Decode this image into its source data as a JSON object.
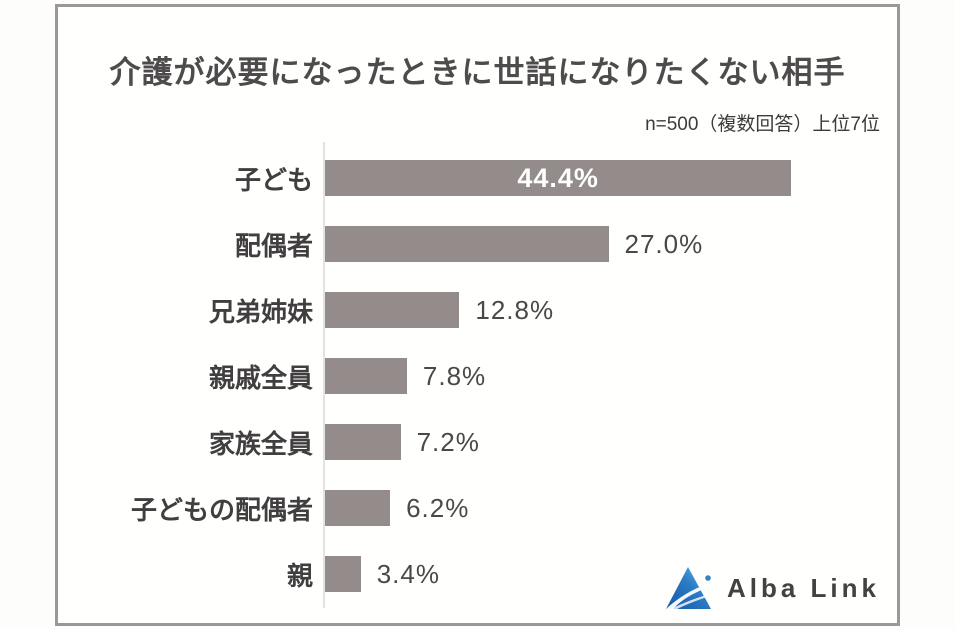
{
  "header": {
    "title": "介護が必要になったときに世話になりたくない相手",
    "note": "n=500（複数回答）上位7位"
  },
  "chart_data": {
    "type": "bar",
    "orientation": "horizontal",
    "title": "介護が必要になったときに世話になりたくない相手",
    "subtitle": "n=500（複数回答）上位7位",
    "categories": [
      "子ども",
      "配偶者",
      "兄弟姉妹",
      "親戚全員",
      "家族全員",
      "子どもの配偶者",
      "親"
    ],
    "values": [
      44.4,
      27.0,
      12.8,
      7.8,
      7.2,
      6.2,
      3.4
    ],
    "value_labels": [
      "44.4%",
      "27.0%",
      "12.8%",
      "7.8%",
      "7.2%",
      "6.2%",
      "3.4%"
    ],
    "value_label_position": [
      "inside",
      "outside",
      "outside",
      "outside",
      "outside",
      "outside",
      "outside"
    ],
    "xlim": [
      0,
      50
    ],
    "grid": false,
    "legend": false,
    "bar_color": "#948b8b",
    "inside_label_color": "#ffffff",
    "outside_label_color": "#4a4848",
    "axis_color": "#e4e1e1",
    "frame_border_color": "#9e9797"
  },
  "logo": {
    "text": "Alba Link",
    "icon": "triangle-swoosh-logo",
    "colors": {
      "dark_blue": "#1456a5",
      "mid_blue": "#2b7cc4",
      "light_blue": "#5fc0ea",
      "dot_blue": "#2e86c9",
      "text": "#434141"
    }
  }
}
